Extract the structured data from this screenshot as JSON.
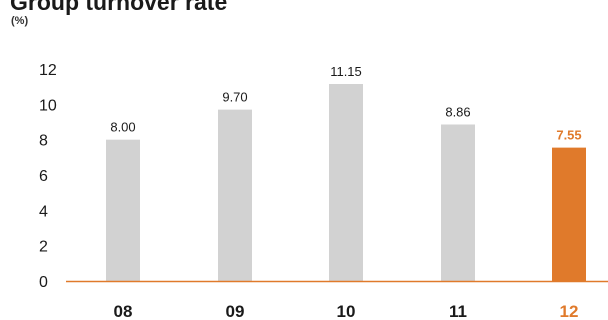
{
  "colors": {
    "bar_default": "#d2d2d2",
    "bar_highlight": "#e07a2b",
    "axis_line": "#e07a2b",
    "text": "#1a1a1a",
    "highlight_text": "#e07a2b"
  },
  "chart_data": {
    "type": "bar",
    "title": "Group turnover rate",
    "unit": "(%)",
    "categories": [
      "08",
      "09",
      "10",
      "11",
      "12"
    ],
    "values": [
      8.0,
      9.7,
      11.15,
      8.86,
      7.55
    ],
    "value_labels": [
      "8.00",
      "9.70",
      "11.15",
      "8.86",
      "7.55"
    ],
    "highlight_index": 4,
    "ylim": [
      0,
      12
    ],
    "yticks": [
      "0",
      "2",
      "4",
      "6",
      "8",
      "10",
      "12"
    ],
    "grid": false,
    "legend": "none"
  }
}
